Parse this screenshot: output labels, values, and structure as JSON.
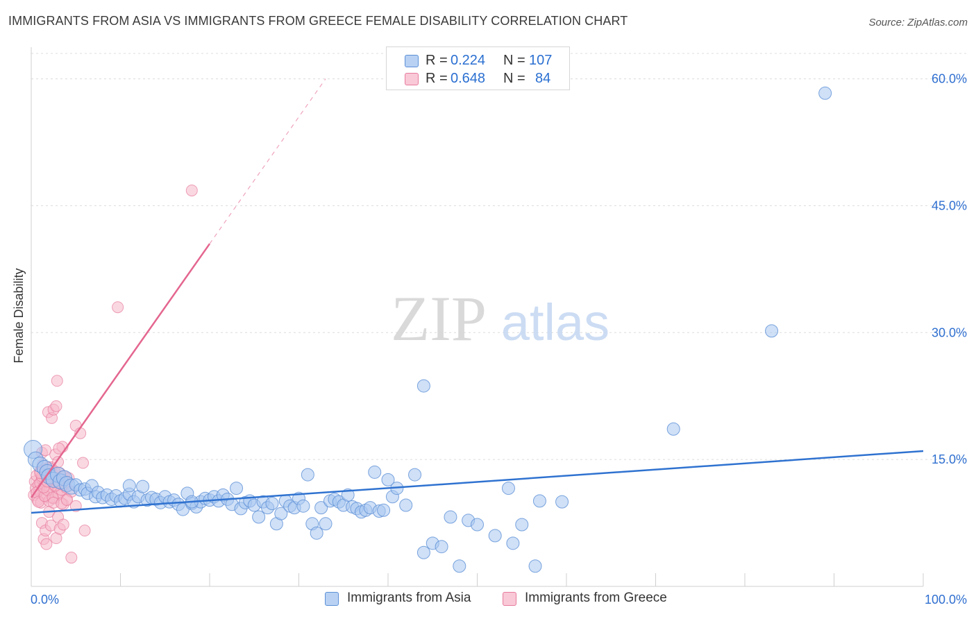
{
  "title": "IMMIGRANTS FROM ASIA VS IMMIGRANTS FROM GREECE FEMALE DISABILITY CORRELATION CHART",
  "source": "Source: ZipAtlas.com",
  "watermark": {
    "zip": "ZIP",
    "atlas": "atlas"
  },
  "colors": {
    "asia_fill": "#a8c6f0",
    "asia_stroke": "#5b8fd6",
    "asia_line": "#2f72d0",
    "greece_fill": "#f6b8cb",
    "greece_stroke": "#e77a9c",
    "greece_line": "#e4668f",
    "grid": "#dcdcdc",
    "axis_label": "#2f6fd0"
  },
  "legend": {
    "rows": [
      {
        "r_label": "R =",
        "r_value": "0.224",
        "n_label": "N =",
        "n_value": "107"
      },
      {
        "r_label": "R =",
        "r_value": "0.648",
        "n_label": "N =",
        "n_value": "84"
      }
    ]
  },
  "bottom_legend": {
    "asia": "Immigrants from Asia",
    "greece": "Immigrants from Greece"
  },
  "chart_data": {
    "type": "scatter",
    "title": "IMMIGRANTS FROM ASIA VS IMMIGRANTS FROM GREECE FEMALE DISABILITY CORRELATION CHART",
    "xlabel": "",
    "ylabel": "Female Disability",
    "xlim": [
      0,
      100
    ],
    "ylim": [
      0,
      63
    ],
    "x_tick_labels": [
      "0.0%",
      "100.0%"
    ],
    "y_ticks": [
      15,
      30,
      45,
      60
    ],
    "y_tick_labels": [
      "15.0%",
      "30.0%",
      "45.0%",
      "60.0%"
    ],
    "grid": true,
    "legend_position": "top-center",
    "series": [
      {
        "name": "Immigrants from Asia",
        "R": 0.224,
        "N": 107,
        "trend": {
          "x": [
            0,
            100
          ],
          "y": [
            8.7,
            16.0
          ],
          "style": "solid"
        },
        "points": [
          [
            0.2,
            16.2
          ],
          [
            0.5,
            15.0
          ],
          [
            1.0,
            14.4
          ],
          [
            1.5,
            14.0
          ],
          [
            1.8,
            13.5
          ],
          [
            2.0,
            13.0
          ],
          [
            2.5,
            12.6
          ],
          [
            3.0,
            13.2
          ],
          [
            3.3,
            12.4
          ],
          [
            3.7,
            12.8
          ],
          [
            4.0,
            12.1
          ],
          [
            4.5,
            11.8
          ],
          [
            5.0,
            12.0
          ],
          [
            5.5,
            11.4
          ],
          [
            6.0,
            11.5
          ],
          [
            6.3,
            11.0
          ],
          [
            6.8,
            11.9
          ],
          [
            7.2,
            10.6
          ],
          [
            7.5,
            11.1
          ],
          [
            8.0,
            10.5
          ],
          [
            8.5,
            10.8
          ],
          [
            9.0,
            10.3
          ],
          [
            9.5,
            10.7
          ],
          [
            10.0,
            10.1
          ],
          [
            10.5,
            10.4
          ],
          [
            11.0,
            10.9
          ],
          [
            11.5,
            10.0
          ],
          [
            12.0,
            10.6
          ],
          [
            12.5,
            11.8
          ],
          [
            13.0,
            10.2
          ],
          [
            13.5,
            10.5
          ],
          [
            14.0,
            10.3
          ],
          [
            14.5,
            9.9
          ],
          [
            15.0,
            10.6
          ],
          [
            15.5,
            10.0
          ],
          [
            16.0,
            10.2
          ],
          [
            16.5,
            9.7
          ],
          [
            17.0,
            9.1
          ],
          [
            17.5,
            11.0
          ],
          [
            18.0,
            9.8
          ],
          [
            18.5,
            9.4
          ],
          [
            19.0,
            10.0
          ],
          [
            19.5,
            10.4
          ],
          [
            20.0,
            10.2
          ],
          [
            20.5,
            10.6
          ],
          [
            21.0,
            10.1
          ],
          [
            21.5,
            10.8
          ],
          [
            22.0,
            10.3
          ],
          [
            22.5,
            9.7
          ],
          [
            23.0,
            11.6
          ],
          [
            23.5,
            9.2
          ],
          [
            24.0,
            9.9
          ],
          [
            24.5,
            10.1
          ],
          [
            25.0,
            9.6
          ],
          [
            25.5,
            8.2
          ],
          [
            26.0,
            10.0
          ],
          [
            26.5,
            9.3
          ],
          [
            27.0,
            9.8
          ],
          [
            27.5,
            7.4
          ],
          [
            28.0,
            8.6
          ],
          [
            28.5,
            10.1
          ],
          [
            29.0,
            9.5
          ],
          [
            29.5,
            9.3
          ],
          [
            30.0,
            10.4
          ],
          [
            30.5,
            9.5
          ],
          [
            31.0,
            13.2
          ],
          [
            31.5,
            7.4
          ],
          [
            32.0,
            6.3
          ],
          [
            32.5,
            9.3
          ],
          [
            33.0,
            7.4
          ],
          [
            33.5,
            10.1
          ],
          [
            34.0,
            10.3
          ],
          [
            34.5,
            10.0
          ],
          [
            35.0,
            9.6
          ],
          [
            35.5,
            10.8
          ],
          [
            36.0,
            9.4
          ],
          [
            36.5,
            9.2
          ],
          [
            37.0,
            8.8
          ],
          [
            37.5,
            9.0
          ],
          [
            38.0,
            9.3
          ],
          [
            38.5,
            13.5
          ],
          [
            39.0,
            8.9
          ],
          [
            39.5,
            9.0
          ],
          [
            40.0,
            12.6
          ],
          [
            40.5,
            10.6
          ],
          [
            41.0,
            11.6
          ],
          [
            42.0,
            9.6
          ],
          [
            43.0,
            13.2
          ],
          [
            44.0,
            4.0
          ],
          [
            45.0,
            5.1
          ],
          [
            46.0,
            4.7
          ],
          [
            47.0,
            8.2
          ],
          [
            48.0,
            2.4
          ],
          [
            49.0,
            7.8
          ],
          [
            50.0,
            7.3
          ],
          [
            52.0,
            6.0
          ],
          [
            53.5,
            11.6
          ],
          [
            54.0,
            5.1
          ],
          [
            55.0,
            7.3
          ],
          [
            56.5,
            2.4
          ],
          [
            57.0,
            10.1
          ],
          [
            59.5,
            10.0
          ],
          [
            72.0,
            18.6
          ],
          [
            83.0,
            30.2
          ],
          [
            89.0,
            58.3
          ],
          [
            44.0,
            23.7
          ],
          [
            11.0,
            11.9
          ],
          [
            18.0,
            10.0
          ]
        ]
      },
      {
        "name": "Immigrants from Greece",
        "R": 0.648,
        "N": 84,
        "trend": {
          "x": [
            0,
            20
          ],
          "y": [
            10.5,
            40.5
          ],
          "style": "solid",
          "dashed_extension_to": [
            33,
            60.0
          ]
        },
        "points": [
          [
            0.3,
            10.8
          ],
          [
            0.4,
            12.4
          ],
          [
            0.5,
            11.6
          ],
          [
            0.6,
            13.1
          ],
          [
            0.7,
            10.2
          ],
          [
            0.8,
            12.0
          ],
          [
            0.9,
            11.3
          ],
          [
            1.0,
            13.6
          ],
          [
            1.1,
            9.9
          ],
          [
            1.2,
            12.7
          ],
          [
            1.3,
            14.4
          ],
          [
            1.4,
            11.0
          ],
          [
            1.5,
            12.3
          ],
          [
            1.6,
            10.6
          ],
          [
            1.7,
            13.9
          ],
          [
            1.8,
            11.8
          ],
          [
            1.9,
            12.9
          ],
          [
            2.0,
            10.1
          ],
          [
            2.1,
            11.5
          ],
          [
            2.2,
            14.1
          ],
          [
            2.3,
            12.2
          ],
          [
            2.4,
            13.3
          ],
          [
            2.5,
            10.4
          ],
          [
            2.6,
            11.9
          ],
          [
            2.7,
            15.6
          ],
          [
            2.8,
            12.6
          ],
          [
            2.9,
            11.1
          ],
          [
            3.0,
            14.7
          ],
          [
            3.1,
            10.9
          ],
          [
            3.2,
            13.4
          ],
          [
            3.3,
            12.1
          ],
          [
            3.4,
            11.4
          ],
          [
            3.5,
            16.5
          ],
          [
            3.6,
            9.7
          ],
          [
            3.7,
            13.0
          ],
          [
            3.8,
            12.5
          ],
          [
            3.9,
            11.7
          ],
          [
            4.0,
            10.3
          ],
          [
            4.2,
            12.8
          ],
          [
            4.5,
            11.2
          ],
          [
            0.6,
            11.1
          ],
          [
            0.8,
            10.0
          ],
          [
            1.0,
            12.2
          ],
          [
            1.2,
            13.0
          ],
          [
            1.5,
            10.7
          ],
          [
            1.8,
            11.4
          ],
          [
            2.1,
            12.6
          ],
          [
            2.4,
            10.5
          ],
          [
            2.7,
            11.9
          ],
          [
            3.0,
            12.3
          ],
          [
            1.2,
            7.5
          ],
          [
            1.4,
            5.6
          ],
          [
            1.6,
            6.6
          ],
          [
            1.7,
            5.0
          ],
          [
            2.0,
            8.8
          ],
          [
            2.2,
            7.2
          ],
          [
            2.5,
            9.9
          ],
          [
            2.8,
            5.7
          ],
          [
            3.0,
            8.2
          ],
          [
            3.2,
            6.8
          ],
          [
            3.4,
            9.8
          ],
          [
            3.6,
            7.3
          ],
          [
            4.0,
            10.2
          ],
          [
            4.5,
            3.4
          ],
          [
            5.0,
            9.5
          ],
          [
            6.0,
            6.6
          ],
          [
            1.9,
            20.6
          ],
          [
            2.3,
            19.9
          ],
          [
            2.5,
            20.9
          ],
          [
            2.8,
            21.3
          ],
          [
            2.9,
            24.3
          ],
          [
            5.0,
            19.0
          ],
          [
            5.5,
            18.1
          ],
          [
            5.8,
            14.6
          ],
          [
            1.2,
            15.8
          ],
          [
            1.6,
            16.1
          ],
          [
            2.0,
            14.0
          ],
          [
            2.6,
            13.6
          ],
          [
            3.1,
            16.3
          ],
          [
            1.0,
            13.4
          ],
          [
            1.4,
            11.7
          ],
          [
            1.8,
            12.4
          ],
          [
            9.7,
            33.0
          ],
          [
            18.0,
            46.8
          ]
        ]
      }
    ]
  }
}
